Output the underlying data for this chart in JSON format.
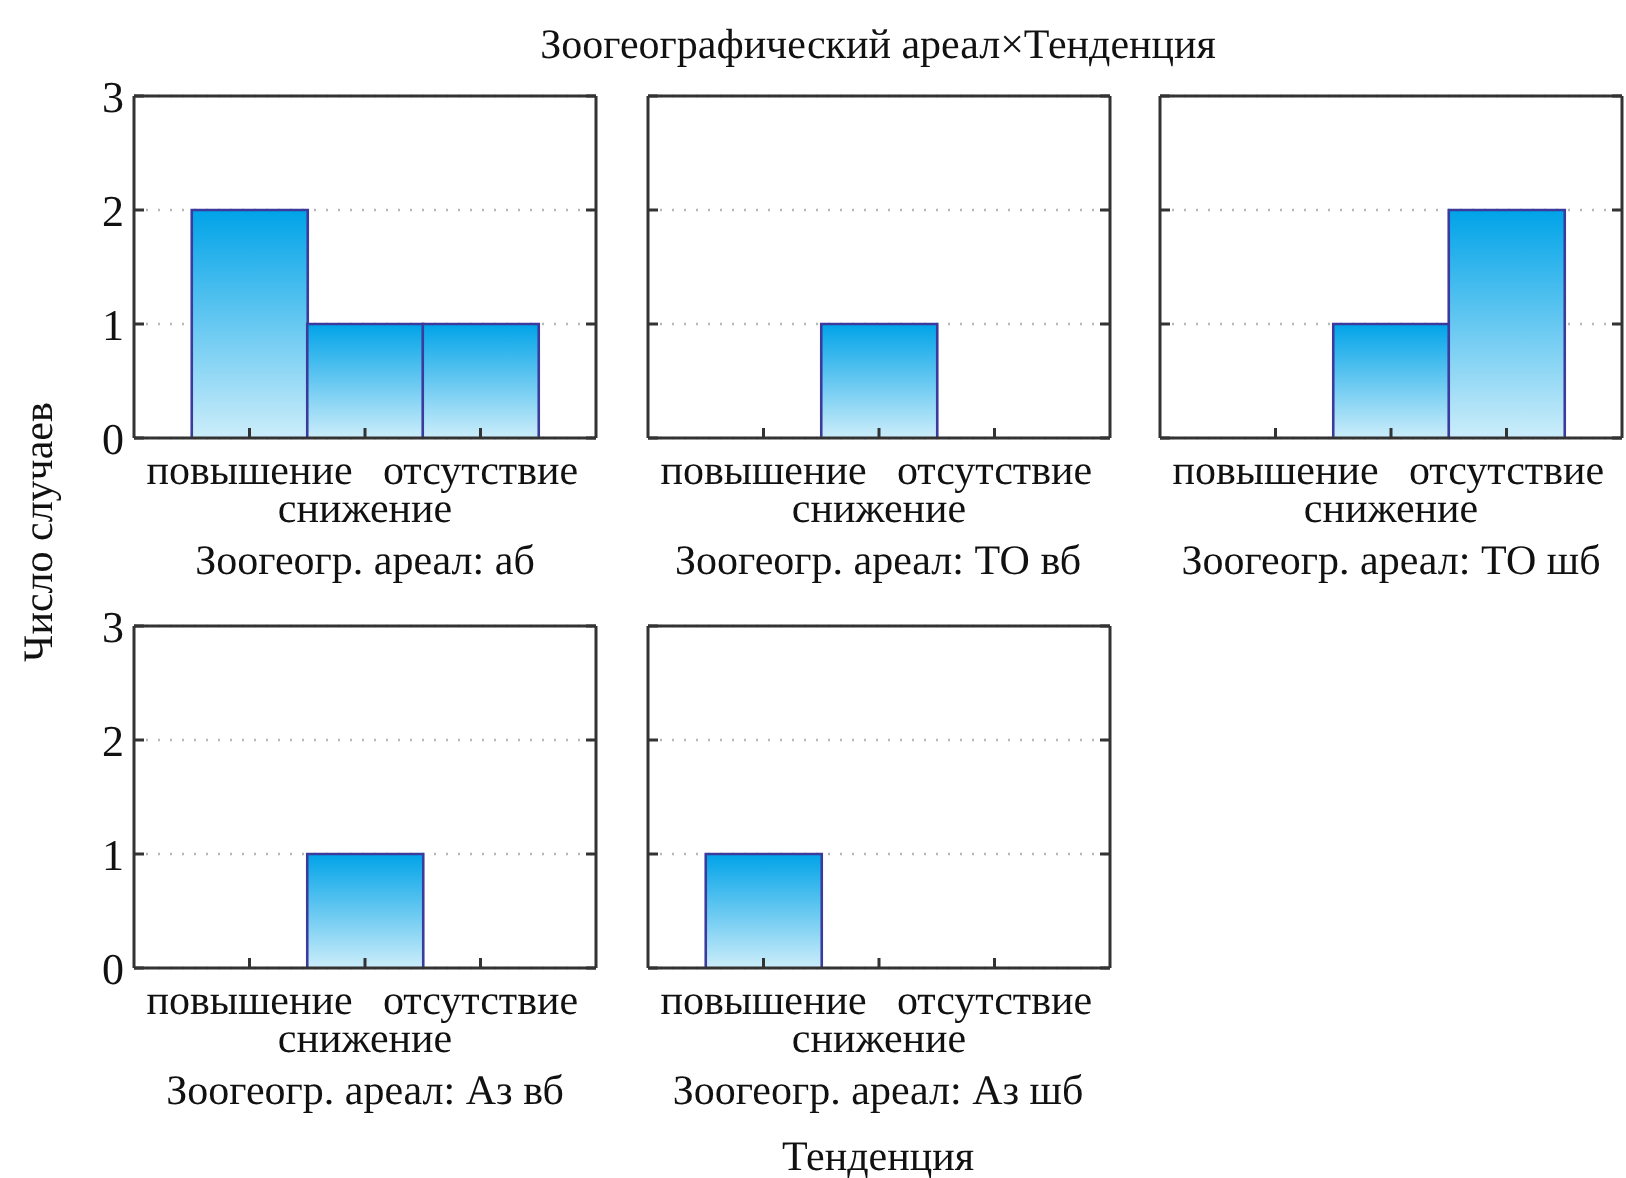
{
  "chart_data": [
    {
      "type": "bar",
      "ylabel": "Число случаев",
      "subtitle": "Зоогеогр. ареал: аб",
      "categories": [
        "повышение",
        "снижение",
        "отсутствие"
      ],
      "values": [
        2,
        1,
        1
      ],
      "color": "#00a3e8",
      "ylim": [
        0,
        3
      ],
      "yticks": [
        0,
        1,
        2,
        3
      ],
      "grid": "y"
    },
    {
      "type": "bar",
      "title": "Зоогеографический ареал×Тенденция",
      "subtitle": "Зоогеогр. ареал: ТО вб",
      "categories": [
        "повышение",
        "снижение",
        "отсутствие"
      ],
      "values": [
        0,
        1,
        0
      ],
      "color": "#00a3e8",
      "ylim": [
        0,
        3
      ],
      "yticks": [
        0,
        1,
        2,
        3
      ],
      "grid": "y",
      "tick_labels": "x"
    },
    {
      "type": "bar",
      "subtitle": "Зоогеогр. ареал: ТО шб",
      "categories": [
        "повышение",
        "снижение",
        "отсутствие"
      ],
      "values": [
        0,
        1,
        2
      ],
      "color": "#00a3e8",
      "ylim": [
        0,
        3
      ],
      "yticks": [
        0,
        1,
        2,
        3
      ],
      "grid": "y",
      "tick_labels": "x"
    },
    {
      "type": "bar",
      "subtitle": "Зоогеогр. ареал: Аз вб",
      "categories": [
        "повышение",
        "снижение",
        "отсутствие"
      ],
      "values": [
        0,
        1,
        0
      ],
      "color": "#00a3e8",
      "ylim": [
        0,
        3
      ],
      "yticks": [
        0,
        1,
        2,
        3
      ],
      "grid": "y"
    },
    {
      "type": "bar",
      "xlabel": "Тенденция",
      "subtitle": "Зоогеогр. ареал: Аз шб",
      "categories": [
        "повышение",
        "снижение",
        "отсутствие"
      ],
      "values": [
        1,
        0,
        0
      ],
      "color": "#00a3e8",
      "ylim": [
        0,
        3
      ],
      "yticks": [
        0,
        1,
        2,
        3
      ],
      "grid": "y",
      "tick_labels": "x"
    }
  ]
}
